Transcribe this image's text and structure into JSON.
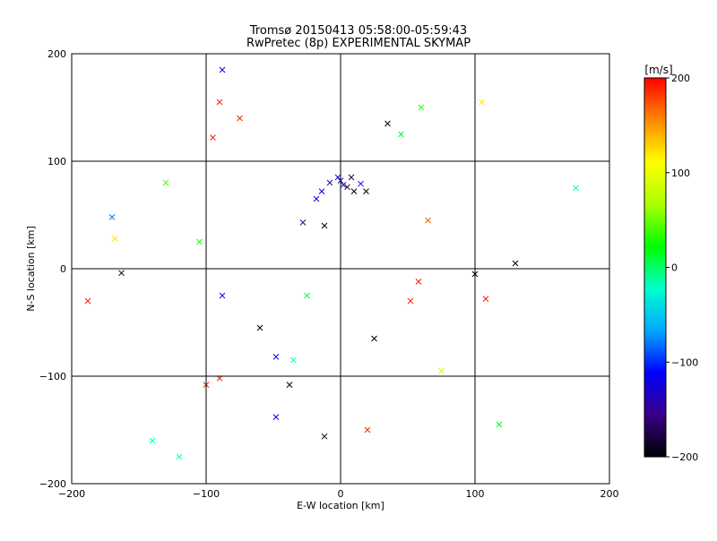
{
  "chart_data": {
    "type": "scatter",
    "title": "Tromsø 20150413 05:58:00-05:59:43",
    "subtitle": "RwPretec (8p) EXPERIMENTAL SKYMAP",
    "xlabel": "E-W location [km]",
    "ylabel": "N-S location [km]",
    "xlim": [
      -200,
      200
    ],
    "ylim": [
      -200,
      200
    ],
    "x_ticks": [
      -200,
      -100,
      0,
      100,
      200
    ],
    "y_ticks": [
      -200,
      -100,
      0,
      100,
      200
    ],
    "grid": true,
    "marker": "x",
    "color_by": "radial velocity",
    "colorbar": {
      "label": "[m/s]",
      "min": -200,
      "max": 200,
      "ticks": [
        -200,
        -100,
        0,
        100,
        200
      ],
      "colormap": [
        "#000000",
        "#3a0088",
        "#0000ff",
        "#00aaff",
        "#00ffcc",
        "#00ff00",
        "#aaff00",
        "#ffff00",
        "#ff8800",
        "#ff0000"
      ]
    },
    "points": [
      {
        "x": 0,
        "y": 82,
        "v": -130
      },
      {
        "x": 2,
        "y": 78,
        "v": -140
      },
      {
        "x": -2,
        "y": 85,
        "v": -120
      },
      {
        "x": 5,
        "y": 76,
        "v": -190
      },
      {
        "x": 10,
        "y": 72,
        "v": -200
      },
      {
        "x": 19,
        "y": 72,
        "v": -200
      },
      {
        "x": 15,
        "y": 79,
        "v": -110
      },
      {
        "x": -14,
        "y": 72,
        "v": -120
      },
      {
        "x": -18,
        "y": 65,
        "v": -120
      },
      {
        "x": -8,
        "y": 80,
        "v": -150
      },
      {
        "x": -12,
        "y": 40,
        "v": -200
      },
      {
        "x": -28,
        "y": 43,
        "v": -150
      },
      {
        "x": 8,
        "y": 85,
        "v": -180
      },
      {
        "x": -88,
        "y": 185,
        "v": -120
      },
      {
        "x": -90,
        "y": 155,
        "v": 190
      },
      {
        "x": -95,
        "y": 122,
        "v": 190
      },
      {
        "x": -75,
        "y": 140,
        "v": 190
      },
      {
        "x": -100,
        "y": -108,
        "v": 190
      },
      {
        "x": -90,
        "y": -102,
        "v": 190
      },
      {
        "x": -188,
        "y": -30,
        "v": 190
      },
      {
        "x": -168,
        "y": 28,
        "v": 120
      },
      {
        "x": -163,
        "y": -4,
        "v": -200
      },
      {
        "x": -170,
        "y": 48,
        "v": -80
      },
      {
        "x": -88,
        "y": -25,
        "v": -110
      },
      {
        "x": -48,
        "y": -82,
        "v": -110
      },
      {
        "x": -60,
        "y": -55,
        "v": -200
      },
      {
        "x": -38,
        "y": -108,
        "v": -200
      },
      {
        "x": -12,
        "y": -156,
        "v": -200
      },
      {
        "x": -48,
        "y": -138,
        "v": -110
      },
      {
        "x": 20,
        "y": -150,
        "v": 190
      },
      {
        "x": 35,
        "y": 135,
        "v": -200
      },
      {
        "x": 105,
        "y": 155,
        "v": 120
      },
      {
        "x": 130,
        "y": 5,
        "v": -200
      },
      {
        "x": 100,
        "y": -5,
        "v": -200
      },
      {
        "x": 108,
        "y": -28,
        "v": 190
      },
      {
        "x": 52,
        "y": -30,
        "v": 190
      },
      {
        "x": 58,
        "y": -12,
        "v": 190
      },
      {
        "x": 65,
        "y": 45,
        "v": 170
      },
      {
        "x": 25,
        "y": -65,
        "v": -200
      },
      {
        "x": 75,
        "y": -95,
        "v": 80
      },
      {
        "x": 118,
        "y": -145,
        "v": 20
      },
      {
        "x": 175,
        "y": 75,
        "v": -20
      },
      {
        "x": -130,
        "y": 80,
        "v": 40
      },
      {
        "x": -120,
        "y": -175,
        "v": -20
      },
      {
        "x": -140,
        "y": -160,
        "v": -20
      },
      {
        "x": -105,
        "y": 25,
        "v": 30
      },
      {
        "x": -35,
        "y": -85,
        "v": -20
      },
      {
        "x": -25,
        "y": -25,
        "v": 10
      },
      {
        "x": 45,
        "y": 125,
        "v": 10
      },
      {
        "x": 60,
        "y": 150,
        "v": 30
      }
    ]
  }
}
